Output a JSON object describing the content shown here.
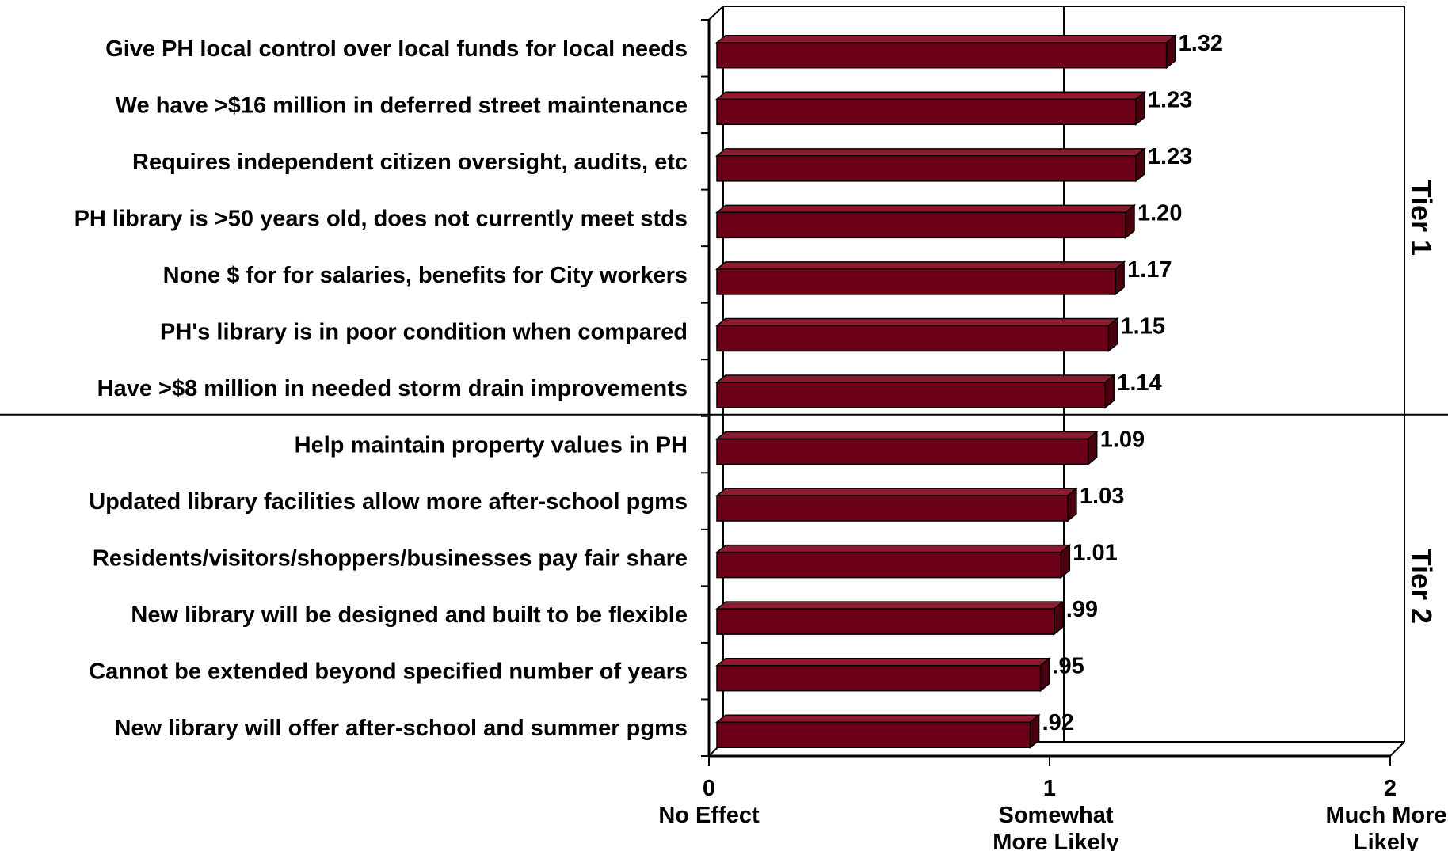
{
  "chart_data": {
    "type": "bar",
    "orientation": "horizontal",
    "style": "3d",
    "categories": [
      "Give PH local control over local funds for local needs",
      "We have >$16 million in deferred street maintenance",
      "Requires independent citizen oversight, audits, etc",
      "PH library is >50 years old, does not currently meet stds",
      "None $ for for salaries, benefits for City workers",
      "PH's library is in poor condition when compared",
      "Have >$8 million in needed storm drain improvements",
      "Help maintain property values in PH",
      "Updated library facilities allow more after-school pgms",
      "Residents/visitors/shoppers/businesses pay fair share",
      "New library will be designed and built to be flexible",
      "Cannot be extended beyond specified number of years",
      "New library will offer after-school and summer pgms"
    ],
    "values": [
      1.32,
      1.23,
      1.23,
      1.2,
      1.17,
      1.15,
      1.14,
      1.09,
      1.03,
      1.01,
      0.99,
      0.95,
      0.92
    ],
    "value_labels": [
      "1.32",
      "1.23",
      "1.23",
      "1.20",
      "1.17",
      "1.15",
      "1.14",
      "1.09",
      "1.03",
      "1.01",
      ".99",
      ".95",
      ".92"
    ],
    "xlim": [
      0,
      2
    ],
    "x_ticks": [
      {
        "value": 0,
        "label": "0",
        "sublabel": [
          "No Effect"
        ]
      },
      {
        "value": 1,
        "label": "1",
        "sublabel": [
          "Somewhat",
          "More  Likely"
        ]
      },
      {
        "value": 2,
        "label": "2",
        "sublabel": [
          "Much More",
          "Likely"
        ]
      }
    ],
    "groups": [
      {
        "label": "Tier 1",
        "start_index": 0,
        "end_index": 6
      },
      {
        "label": "Tier 2",
        "start_index": 7,
        "end_index": 12
      }
    ],
    "reference_line_at": 1,
    "colors": {
      "bar_front": "#6b0016",
      "bar_top": "#8e1a30",
      "bar_side": "#4a000e",
      "axis": "#000000"
    }
  }
}
